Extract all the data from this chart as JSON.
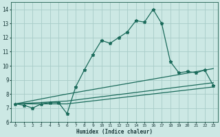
{
  "xlabel": "Humidex (Indice chaleur)",
  "background_color": "#cce8e4",
  "grid_color": "#a8ccc8",
  "line_color": "#1a6a5a",
  "xlim": [
    -0.5,
    23.5
  ],
  "ylim": [
    6.0,
    14.5
  ],
  "yticks": [
    6,
    7,
    8,
    9,
    10,
    11,
    12,
    13,
    14
  ],
  "xticks": [
    0,
    1,
    2,
    3,
    4,
    5,
    6,
    7,
    8,
    9,
    10,
    11,
    12,
    13,
    14,
    15,
    16,
    17,
    18,
    19,
    20,
    21,
    22,
    23
  ],
  "line1_x": [
    0,
    1,
    2,
    3,
    4,
    5,
    6,
    7,
    8,
    9,
    10,
    11,
    12,
    13,
    14,
    15,
    16,
    17,
    18,
    19,
    20,
    21,
    22,
    23
  ],
  "line1_y": [
    7.3,
    7.2,
    7.0,
    7.3,
    7.4,
    7.4,
    6.6,
    8.5,
    9.7,
    10.8,
    11.8,
    11.6,
    12.0,
    12.4,
    13.2,
    13.1,
    14.0,
    13.0,
    10.3,
    9.5,
    9.6,
    9.5,
    9.7,
    8.6
  ],
  "line2_x": [
    0,
    6,
    23
  ],
  "line2_y": [
    7.3,
    7.3,
    8.5
  ],
  "line3_x": [
    0,
    6,
    23
  ],
  "line3_y": [
    7.3,
    7.5,
    8.8
  ],
  "line4_x": [
    0,
    6,
    23
  ],
  "line4_y": [
    7.3,
    8.0,
    9.8
  ],
  "marker": "*",
  "marker_size": 3.5,
  "linewidth": 0.9
}
